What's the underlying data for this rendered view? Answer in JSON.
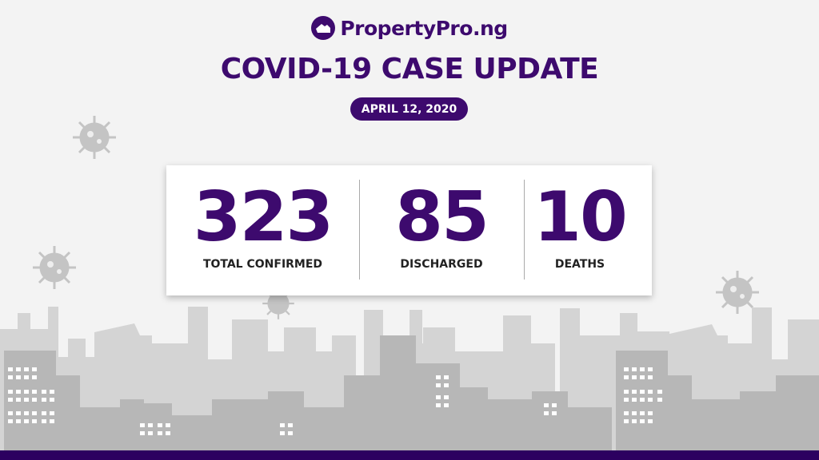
{
  "brand": {
    "name": "PropertyPro.ng",
    "icon": "house-logo-icon"
  },
  "header": {
    "title": "COVID-19 CASE UPDATE",
    "date": "APRIL 12, 2020"
  },
  "stats": [
    {
      "value": "323",
      "label": "TOTAL CONFIRMED"
    },
    {
      "value": "85",
      "label": "DISCHARGED"
    },
    {
      "value": "10",
      "label": "DEATHS"
    }
  ],
  "colors": {
    "accent": "#3d0a6e",
    "footer": "#2c0060",
    "background": "#f3f3f3"
  }
}
